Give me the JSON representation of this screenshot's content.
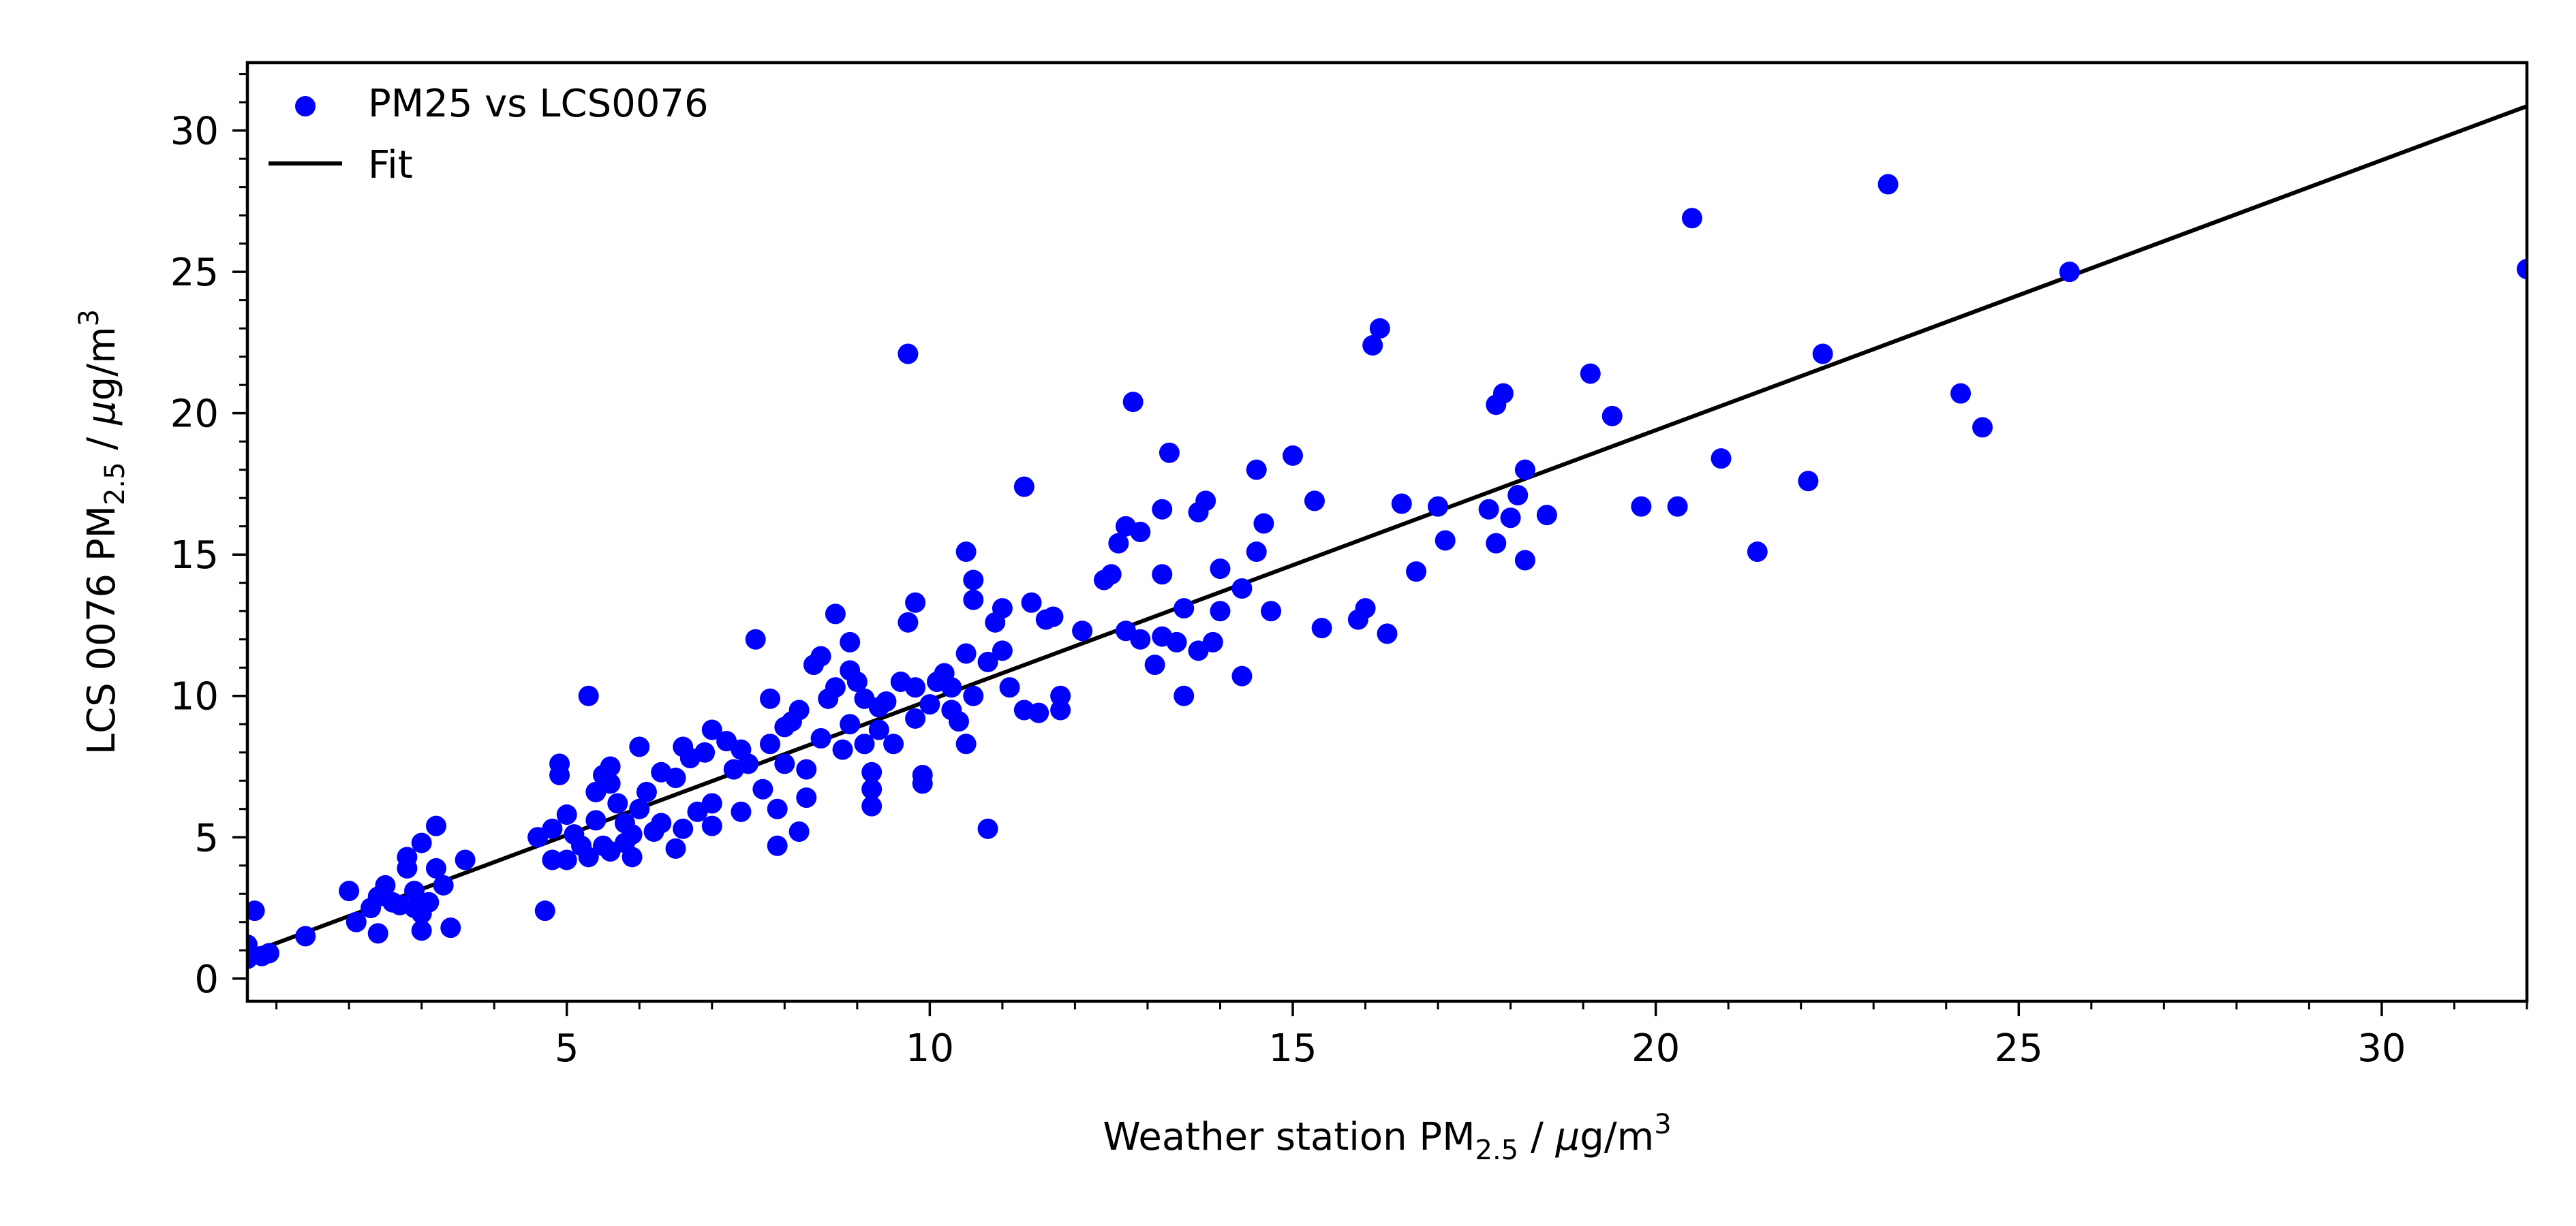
{
  "chart_data": {
    "type": "scatter",
    "xlabel": {
      "prefix": "Weather station PM",
      "sub": "2.5",
      "mid": " / ",
      "unit_mu": "μ",
      "unit_rest": "g/m",
      "sup": "3"
    },
    "ylabel": {
      "prefix": "LCS 0076 PM",
      "sub": "2.5",
      "mid": " / ",
      "unit_mu": "μ",
      "unit_rest": "g/m",
      "sup": "3"
    },
    "xlim": [
      0.6,
      32.0
    ],
    "ylim": [
      -0.8,
      32.4
    ],
    "xticks": [
      5,
      10,
      15,
      20,
      25,
      30
    ],
    "yticks": [
      0,
      5,
      10,
      15,
      20,
      25,
      30
    ],
    "xtick_labels": [
      "5",
      "10",
      "15",
      "20",
      "25",
      "30"
    ],
    "ytick_labels": [
      "0",
      "5",
      "10",
      "15",
      "20",
      "25",
      "30"
    ],
    "x_minor_step": 1,
    "y_minor_step": 1,
    "grid": false,
    "legend": {
      "placement": "top-left",
      "scatter_label": "PM25 vs LCS0076",
      "fit_label": "Fit"
    },
    "colors": {
      "points": "#0000ff",
      "fit": "#000000",
      "axes": "#000000"
    },
    "fit": {
      "slope": 0.955,
      "intercept": 0.3
    },
    "series": [
      {
        "name": "PM25 vs LCS0076",
        "points": [
          [
            0.6,
            0.7
          ],
          [
            0.6,
            1.2
          ],
          [
            0.7,
            2.4
          ],
          [
            0.8,
            0.8
          ],
          [
            0.9,
            0.9
          ],
          [
            1.4,
            1.5
          ],
          [
            2.0,
            3.1
          ],
          [
            2.1,
            2.0
          ],
          [
            2.3,
            2.5
          ],
          [
            2.4,
            2.9
          ],
          [
            2.4,
            1.6
          ],
          [
            2.5,
            3.3
          ],
          [
            2.6,
            2.7
          ],
          [
            2.7,
            2.6
          ],
          [
            2.8,
            3.9
          ],
          [
            2.8,
            4.3
          ],
          [
            2.9,
            3.1
          ],
          [
            2.9,
            2.5
          ],
          [
            3.0,
            4.8
          ],
          [
            3.0,
            2.3
          ],
          [
            3.0,
            1.7
          ],
          [
            3.1,
            2.7
          ],
          [
            3.2,
            3.9
          ],
          [
            3.2,
            5.4
          ],
          [
            3.3,
            3.3
          ],
          [
            3.4,
            1.8
          ],
          [
            3.6,
            4.2
          ],
          [
            4.6,
            5.0
          ],
          [
            4.7,
            2.4
          ],
          [
            4.8,
            4.2
          ],
          [
            4.8,
            5.3
          ],
          [
            4.9,
            7.6
          ],
          [
            4.9,
            7.2
          ],
          [
            5.0,
            5.8
          ],
          [
            5.0,
            4.2
          ],
          [
            5.1,
            5.1
          ],
          [
            5.2,
            4.7
          ],
          [
            5.3,
            10.0
          ],
          [
            5.3,
            4.3
          ],
          [
            5.4,
            6.6
          ],
          [
            5.4,
            5.6
          ],
          [
            5.5,
            7.2
          ],
          [
            5.5,
            4.7
          ],
          [
            5.6,
            6.9
          ],
          [
            5.6,
            7.5
          ],
          [
            5.6,
            4.5
          ],
          [
            5.7,
            6.2
          ],
          [
            5.8,
            5.5
          ],
          [
            5.8,
            4.8
          ],
          [
            5.9,
            5.1
          ],
          [
            5.9,
            4.3
          ],
          [
            6.0,
            8.2
          ],
          [
            6.0,
            6.0
          ],
          [
            6.1,
            6.6
          ],
          [
            6.2,
            5.2
          ],
          [
            6.3,
            7.3
          ],
          [
            6.3,
            5.5
          ],
          [
            6.5,
            7.1
          ],
          [
            6.5,
            4.6
          ],
          [
            6.6,
            5.3
          ],
          [
            6.6,
            8.2
          ],
          [
            6.7,
            7.8
          ],
          [
            6.8,
            5.9
          ],
          [
            6.9,
            8.0
          ],
          [
            7.0,
            8.8
          ],
          [
            7.0,
            6.2
          ],
          [
            7.0,
            5.4
          ],
          [
            7.2,
            8.4
          ],
          [
            7.3,
            7.4
          ],
          [
            7.4,
            5.9
          ],
          [
            7.4,
            8.1
          ],
          [
            7.5,
            7.6
          ],
          [
            7.6,
            12.0
          ],
          [
            7.7,
            6.7
          ],
          [
            7.8,
            8.3
          ],
          [
            7.8,
            9.9
          ],
          [
            7.9,
            6.0
          ],
          [
            7.9,
            4.7
          ],
          [
            8.0,
            8.9
          ],
          [
            8.0,
            7.6
          ],
          [
            8.1,
            9.1
          ],
          [
            8.2,
            5.2
          ],
          [
            8.2,
            9.5
          ],
          [
            8.3,
            7.4
          ],
          [
            8.3,
            6.4
          ],
          [
            8.4,
            11.1
          ],
          [
            8.5,
            8.5
          ],
          [
            8.5,
            11.4
          ],
          [
            8.6,
            9.9
          ],
          [
            8.7,
            12.9
          ],
          [
            8.7,
            10.3
          ],
          [
            8.8,
            8.1
          ],
          [
            8.9,
            11.9
          ],
          [
            8.9,
            9.0
          ],
          [
            8.9,
            10.9
          ],
          [
            9.0,
            10.5
          ],
          [
            9.1,
            9.9
          ],
          [
            9.1,
            8.3
          ],
          [
            9.2,
            7.3
          ],
          [
            9.2,
            6.7
          ],
          [
            9.2,
            6.1
          ],
          [
            9.3,
            8.8
          ],
          [
            9.3,
            9.6
          ],
          [
            9.4,
            9.8
          ],
          [
            9.5,
            8.3
          ],
          [
            9.6,
            10.5
          ],
          [
            9.7,
            12.6
          ],
          [
            9.7,
            22.1
          ],
          [
            9.8,
            13.3
          ],
          [
            9.8,
            10.3
          ],
          [
            9.8,
            9.2
          ],
          [
            9.9,
            7.2
          ],
          [
            9.9,
            6.9
          ],
          [
            10.0,
            9.7
          ],
          [
            10.1,
            10.5
          ],
          [
            10.2,
            10.8
          ],
          [
            10.3,
            10.3
          ],
          [
            10.3,
            9.5
          ],
          [
            10.4,
            9.1
          ],
          [
            10.5,
            15.1
          ],
          [
            10.5,
            11.5
          ],
          [
            10.5,
            8.3
          ],
          [
            10.6,
            14.1
          ],
          [
            10.6,
            13.4
          ],
          [
            10.6,
            10.0
          ],
          [
            10.8,
            11.2
          ],
          [
            10.8,
            5.3
          ],
          [
            10.9,
            12.6
          ],
          [
            11.0,
            11.6
          ],
          [
            11.0,
            13.1
          ],
          [
            11.1,
            10.3
          ],
          [
            11.3,
            17.4
          ],
          [
            11.3,
            9.5
          ],
          [
            11.4,
            13.3
          ],
          [
            11.5,
            9.4
          ],
          [
            11.6,
            12.7
          ],
          [
            11.7,
            12.8
          ],
          [
            11.8,
            10.0
          ],
          [
            11.8,
            9.5
          ],
          [
            12.1,
            12.3
          ],
          [
            12.4,
            14.1
          ],
          [
            12.5,
            14.3
          ],
          [
            12.6,
            15.4
          ],
          [
            12.7,
            12.3
          ],
          [
            12.7,
            16.0
          ],
          [
            12.8,
            20.4
          ],
          [
            12.9,
            15.8
          ],
          [
            12.9,
            12.0
          ],
          [
            13.1,
            11.1
          ],
          [
            13.2,
            16.6
          ],
          [
            13.2,
            14.3
          ],
          [
            13.2,
            12.1
          ],
          [
            13.3,
            18.6
          ],
          [
            13.4,
            11.9
          ],
          [
            13.5,
            13.1
          ],
          [
            13.5,
            10.0
          ],
          [
            13.7,
            11.6
          ],
          [
            13.7,
            16.5
          ],
          [
            13.8,
            16.9
          ],
          [
            13.9,
            11.9
          ],
          [
            14.0,
            13.0
          ],
          [
            14.0,
            14.5
          ],
          [
            14.3,
            13.8
          ],
          [
            14.3,
            10.7
          ],
          [
            14.5,
            18.0
          ],
          [
            14.5,
            15.1
          ],
          [
            14.6,
            16.1
          ],
          [
            14.7,
            13.0
          ],
          [
            15.0,
            18.5
          ],
          [
            15.3,
            16.9
          ],
          [
            15.4,
            12.4
          ],
          [
            15.9,
            12.7
          ],
          [
            16.0,
            13.1
          ],
          [
            16.1,
            22.4
          ],
          [
            16.2,
            23.0
          ],
          [
            16.3,
            12.2
          ],
          [
            16.5,
            16.8
          ],
          [
            16.7,
            14.4
          ],
          [
            17.0,
            16.7
          ],
          [
            17.1,
            15.5
          ],
          [
            17.7,
            16.6
          ],
          [
            17.8,
            15.4
          ],
          [
            17.8,
            20.3
          ],
          [
            17.9,
            20.7
          ],
          [
            18.0,
            16.3
          ],
          [
            18.1,
            17.1
          ],
          [
            18.2,
            14.8
          ],
          [
            18.2,
            18.0
          ],
          [
            18.5,
            16.4
          ],
          [
            19.1,
            21.4
          ],
          [
            19.4,
            19.9
          ],
          [
            19.8,
            16.7
          ],
          [
            20.3,
            16.7
          ],
          [
            20.5,
            26.9
          ],
          [
            20.9,
            18.4
          ],
          [
            21.4,
            15.1
          ],
          [
            22.1,
            17.6
          ],
          [
            22.3,
            22.1
          ],
          [
            23.2,
            28.1
          ],
          [
            24.2,
            20.7
          ],
          [
            24.5,
            19.5
          ],
          [
            25.7,
            25.0
          ],
          [
            32.0,
            25.1
          ]
        ]
      }
    ]
  }
}
